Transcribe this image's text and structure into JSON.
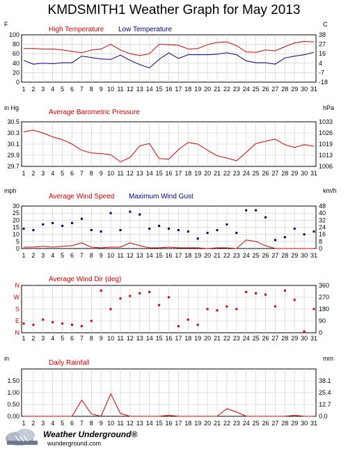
{
  "title": "KMDSMITH1 Weather Graph for May 2013",
  "days": [
    1,
    2,
    3,
    4,
    5,
    6,
    7,
    8,
    9,
    10,
    11,
    12,
    13,
    14,
    15,
    16,
    17,
    18,
    19,
    20,
    21,
    22,
    23,
    24,
    25,
    26,
    27,
    28,
    29,
    30,
    31
  ],
  "footer": {
    "brand": "Weather Underground",
    "reg": "®",
    "site": "wunderground.com"
  },
  "colors": {
    "red": "#d40000",
    "blue": "#00007a",
    "grid": "#c8c8c8"
  },
  "chart_data": [
    {
      "type": "line",
      "left_unit": "F",
      "right_unit": "C",
      "ylim": [
        0,
        100
      ],
      "left_ticks": [
        "100",
        "80",
        "60",
        "40",
        "20",
        "0"
      ],
      "right_ticks": [
        "38",
        "27",
        "16",
        "4",
        "-7",
        "-18"
      ],
      "series": [
        {
          "name": "High Temperature",
          "color": "#d40000",
          "values": [
            71,
            71,
            70,
            70,
            68,
            65,
            62,
            68,
            70,
            80,
            68,
            60,
            56,
            60,
            80,
            79,
            78,
            70,
            71,
            79,
            84,
            85,
            77,
            64,
            63,
            68,
            66,
            75,
            83,
            86,
            85
          ]
        },
        {
          "name": "Low Temperature",
          "color": "#00007a",
          "values": [
            46,
            38,
            40,
            39,
            41,
            41,
            55,
            52,
            49,
            48,
            57,
            46,
            37,
            30,
            48,
            62,
            50,
            58,
            58,
            58,
            59,
            62,
            58,
            45,
            41,
            41,
            38,
            51,
            55,
            58,
            63
          ]
        }
      ]
    },
    {
      "type": "line",
      "left_unit": "in Hg",
      "right_unit": "hPa",
      "ylim": [
        29.7,
        30.5
      ],
      "left_ticks": [
        "30.5",
        "30.3",
        "30.1",
        "29.9",
        "29.7"
      ],
      "right_ticks": [
        "1033",
        "1026",
        "1019",
        "1013",
        "1006"
      ],
      "series": [
        {
          "name": "Average Barometric Pressure",
          "color": "#d40000",
          "values": [
            30.32,
            30.35,
            30.3,
            30.23,
            30.18,
            30.1,
            29.99,
            29.94,
            29.93,
            29.91,
            29.78,
            29.86,
            30.07,
            30.11,
            29.84,
            29.83,
            30.0,
            30.13,
            30.1,
            29.99,
            29.89,
            29.85,
            29.8,
            29.95,
            30.11,
            30.15,
            30.19,
            30.09,
            30.04,
            30.09,
            30.06
          ]
        }
      ]
    },
    {
      "type": "line",
      "left_unit": "mph",
      "right_unit": "km/h",
      "ylim": [
        0,
        30
      ],
      "left_ticks": [
        "30",
        "25",
        "20",
        "15",
        "10",
        "5",
        "0"
      ],
      "right_ticks": [
        "48",
        "40",
        "32",
        "24",
        "16",
        "8",
        "0"
      ],
      "series": [
        {
          "name": "Average Wind Speed",
          "color": "#d40000",
          "values": [
            1,
            1,
            1.5,
            1,
            1.5,
            2,
            4,
            1,
            0.5,
            1,
            1,
            4,
            2,
            0.5,
            0.5,
            1,
            0.5,
            0.5,
            0.5,
            0,
            0.5,
            0.5,
            0,
            6,
            5,
            2,
            0,
            0,
            0,
            0,
            0
          ]
        },
        {
          "name": "Maximum Wind Gust",
          "color": "#00007a",
          "markers_only": true,
          "values": [
            14,
            13,
            17,
            18,
            16,
            18,
            21,
            13,
            12,
            25,
            13,
            26,
            24,
            14,
            16,
            14,
            13,
            12,
            7,
            11,
            13,
            17,
            11,
            27,
            27,
            22,
            6,
            8,
            14,
            10,
            12
          ]
        }
      ]
    },
    {
      "type": "scatter",
      "left_ticks": [
        "N",
        "W",
        "S",
        "E",
        "N"
      ],
      "right_ticks": [
        "360",
        "270",
        "180",
        "90",
        "0"
      ],
      "ylim": [
        0,
        360
      ],
      "series": [
        {
          "name": "Average Wind Dir (deg)",
          "color": "#d40000",
          "values": [
            70,
            60,
            100,
            80,
            70,
            60,
            50,
            90,
            320,
            180,
            260,
            280,
            300,
            310,
            210,
            270,
            50,
            100,
            60,
            180,
            170,
            200,
            180,
            310,
            300,
            290,
            200,
            320,
            250,
            10,
            180
          ]
        }
      ]
    },
    {
      "type": "line",
      "left_unit": "in",
      "right_unit": "mm",
      "ylim": [
        0,
        2.0
      ],
      "left_ticks": [
        "1.50",
        "1.00",
        "0.50",
        "0.00"
      ],
      "right_ticks": [
        "38.1",
        "25.4",
        "12.7",
        "0.0"
      ],
      "series": [
        {
          "name": "Daily Rainfall",
          "color": "#d40000",
          "values": [
            0,
            0,
            0,
            0,
            0,
            0,
            0.68,
            0.1,
            0,
            0.95,
            0.12,
            0,
            0,
            0,
            0,
            0.04,
            0,
            0,
            0,
            0,
            0,
            0.32,
            0.18,
            0,
            0,
            0,
            0,
            0,
            0.04,
            0,
            0
          ]
        }
      ]
    }
  ]
}
